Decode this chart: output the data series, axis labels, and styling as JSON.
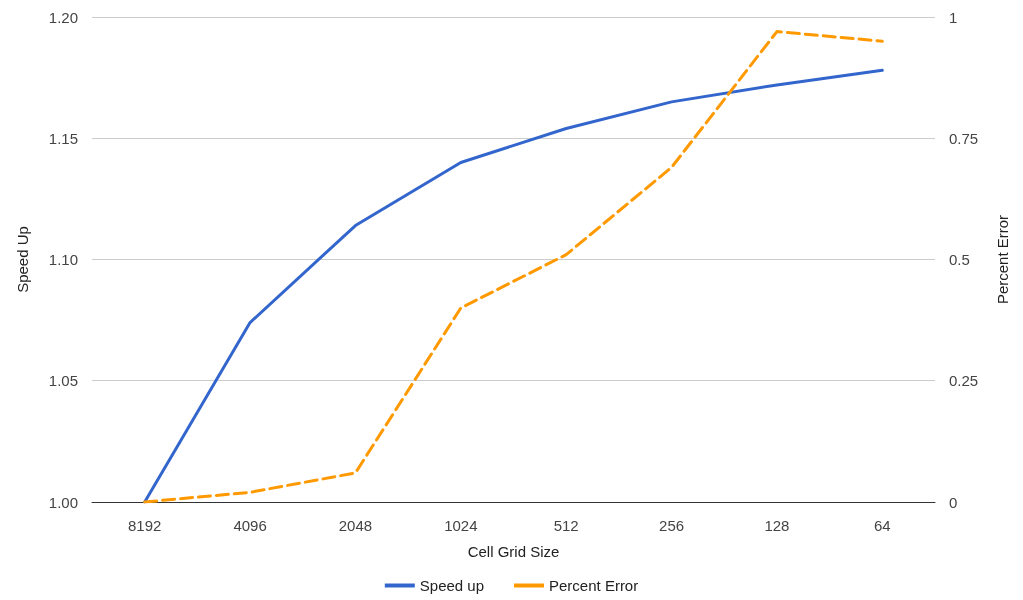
{
  "chart_data": {
    "type": "line",
    "xlabel": "Cell Grid Size",
    "ylabel": "Speed Up",
    "y2label": "Percent Error",
    "categories": [
      "8192",
      "4096",
      "2048",
      "1024",
      "512",
      "256",
      "128",
      "64"
    ],
    "series": [
      {
        "name": "Speed up",
        "color": "#3366cc",
        "line_style": "solid",
        "values": [
          1.0,
          1.074,
          1.114,
          1.14,
          1.154,
          1.165,
          1.172,
          1.178
        ]
      },
      {
        "name": "Percent Error",
        "color": "#ff9900",
        "line_style": "dashed",
        "axis": "y2",
        "values": [
          0,
          0.02,
          0.06,
          0.4,
          0.51,
          0.69,
          0.97,
          0.95
        ]
      }
    ],
    "ylim": [
      1.0,
      1.2
    ],
    "yticks": [
      {
        "value": 1.0,
        "label": "1.00"
      },
      {
        "value": 1.05,
        "label": "1.05"
      },
      {
        "value": 1.1,
        "label": "1.10"
      },
      {
        "value": 1.15,
        "label": "1.15"
      },
      {
        "value": 1.2,
        "label": "1.20"
      }
    ],
    "y2lim": [
      0,
      1
    ],
    "y2ticks": [
      0,
      0.25,
      0.5,
      0.75,
      1
    ],
    "grid": "y",
    "legend": "bottom",
    "marker": "none"
  }
}
